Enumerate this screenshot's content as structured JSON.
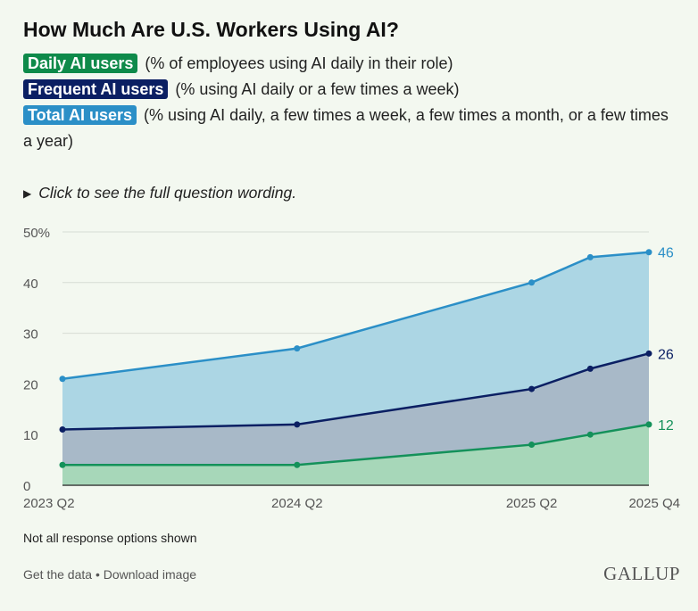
{
  "title": "How Much Are U.S. Workers Using AI?",
  "legend": [
    {
      "label": "Daily AI users",
      "desc": " (% of employees using AI daily in their role)",
      "color": "#0e8a4a"
    },
    {
      "label": "Frequent AI users",
      "desc": " (% using AI daily or a few times a week)",
      "color": "#0b1f63"
    },
    {
      "label": "Total AI users",
      "desc": " (% using AI daily, a few times a week, a few times a month, or a few times a year)",
      "color": "#2b8fc7"
    }
  ],
  "toggle_text": "Click to see the full question wording.",
  "note": "Not all response options shown",
  "footer": {
    "get_data": "Get the data",
    "separator": " • ",
    "download": "Download image"
  },
  "logo": "GALLUP",
  "chart_data": {
    "type": "area",
    "x": [
      "2023 Q2",
      "2024 Q2",
      "2025 Q2",
      "2025 Q3",
      "2025 Q4"
    ],
    "x_numeric": [
      2023.25,
      2024.25,
      2025.25,
      2025.5,
      2025.75
    ],
    "xticks": [
      "2023 Q2",
      "2024 Q2",
      "2025 Q2",
      "2025 Q4"
    ],
    "xticks_numeric": [
      2023.25,
      2024.25,
      2025.25,
      2025.75
    ],
    "yticks": [
      "50%",
      "40",
      "30",
      "20",
      "10",
      "0"
    ],
    "yticks_numeric": [
      50,
      40,
      30,
      20,
      10,
      0
    ],
    "ylim": [
      0,
      50
    ],
    "grid": true,
    "series": [
      {
        "name": "Total AI users",
        "values": [
          21,
          27,
          40,
          45,
          46
        ],
        "end_label": "46",
        "line": "#2b8fc7",
        "fill": "#acd6e4"
      },
      {
        "name": "Frequent AI users",
        "values": [
          11,
          12,
          19,
          23,
          26
        ],
        "end_label": "26",
        "line": "#0b1f63",
        "fill": "#a8b9c8"
      },
      {
        "name": "Daily AI users",
        "values": [
          4,
          4,
          8,
          10,
          12
        ],
        "end_label": "12",
        "line": "#14915a",
        "fill": "#a7d7b9"
      }
    ]
  }
}
